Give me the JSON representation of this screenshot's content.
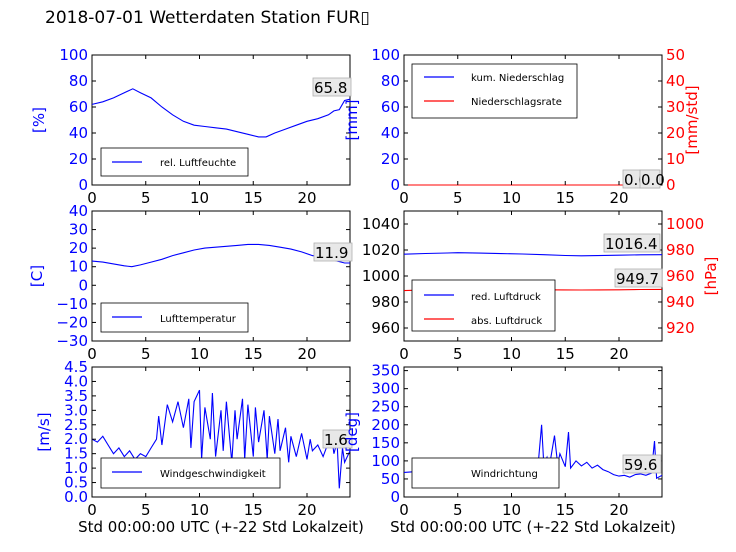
{
  "title": "2018-07-01 Wetterdaten Station FUR▯",
  "colors": {
    "blue": "#0000ff",
    "red": "#ff0000",
    "black": "#000000"
  },
  "chart_data": [
    {
      "type": "line",
      "panel": "humidity",
      "ylabel": "[%]",
      "ylim": [
        0,
        100
      ],
      "yticks": [
        "0",
        "20",
        "40",
        "60",
        "80",
        "100"
      ],
      "xlim": [
        0,
        24
      ],
      "xticks": [
        "0",
        "5",
        "10",
        "15",
        "20"
      ],
      "xlabel": "",
      "legend": {
        "placement": "lower-left",
        "entries": [
          "rel. Luftfeuchte"
        ]
      },
      "annotations": [
        "65.8"
      ],
      "series": [
        {
          "name": "rel. Luftfeuchte",
          "axis": "left",
          "color": "blue",
          "x": [
            0,
            1,
            2,
            3,
            3.8,
            4.5,
            5.5,
            6.5,
            7.5,
            8.5,
            9.5,
            10.5,
            11.5,
            12.5,
            13.5,
            14.5,
            15.5,
            16.2,
            17,
            18,
            19,
            20,
            21,
            22,
            22.5,
            23,
            23.5,
            24
          ],
          "y": [
            62,
            64,
            67,
            71,
            74,
            71,
            67,
            60,
            54,
            49,
            46,
            45,
            44,
            43,
            41,
            39,
            37,
            37,
            40,
            43,
            46,
            49,
            51,
            54,
            57,
            58,
            65,
            66
          ]
        }
      ]
    },
    {
      "type": "line",
      "panel": "precipitation",
      "ylabel": "[mm]",
      "ylim": [
        0,
        100
      ],
      "yticks": [
        "0",
        "20",
        "40",
        "60",
        "80",
        "100"
      ],
      "ylabel_right": "[mm/std]",
      "ylim_right": [
        0,
        50
      ],
      "yticks_right": [
        "0",
        "10",
        "20",
        "30",
        "40",
        "50"
      ],
      "xlim": [
        0,
        24
      ],
      "xticks": [
        "0",
        "5",
        "10",
        "15",
        "20"
      ],
      "xlabel": "",
      "legend": {
        "placement": "upper-left",
        "entries": [
          "kum. Niederschlag",
          "Niederschlagsrate"
        ]
      },
      "annotations": [
        "0.0",
        "0.0"
      ],
      "series": [
        {
          "name": "kum. Niederschlag",
          "axis": "left",
          "color": "blue",
          "x": [
            0,
            24
          ],
          "y": [
            0,
            0
          ]
        },
        {
          "name": "Niederschlagsrate",
          "axis": "right",
          "color": "red",
          "x": [
            0,
            24
          ],
          "y": [
            0,
            0
          ]
        }
      ]
    },
    {
      "type": "line",
      "panel": "temperature",
      "ylabel": "[C]",
      "ylim": [
        -30,
        40
      ],
      "yticks": [
        "−30",
        "−20",
        "−10",
        "0",
        "10",
        "20",
        "30",
        "40"
      ],
      "xlim": [
        0,
        24
      ],
      "xticks": [
        "0",
        "5",
        "10",
        "15",
        "20"
      ],
      "xlabel": "",
      "legend": {
        "placement": "lower-left",
        "entries": [
          "Lufttemperatur"
        ]
      },
      "annotations": [
        "11.9"
      ],
      "series": [
        {
          "name": "Lufttemperatur",
          "axis": "left",
          "color": "blue",
          "x": [
            0,
            1,
            2,
            3,
            3.7,
            4.5,
            5.5,
            6.5,
            7.5,
            8.5,
            9.5,
            10.5,
            11.5,
            12.5,
            13.5,
            14.5,
            15.5,
            16.5,
            17.5,
            18.5,
            19.5,
            20.5,
            21.5,
            22.5,
            23.5,
            24
          ],
          "y": [
            13,
            12.5,
            11.5,
            10.5,
            10,
            11,
            12.5,
            14,
            16,
            17.5,
            19,
            20,
            20.5,
            21,
            21.5,
            22,
            22,
            21.5,
            20.5,
            19.5,
            18,
            16,
            15,
            13.5,
            12,
            12
          ]
        }
      ]
    },
    {
      "type": "line",
      "panel": "pressure",
      "ylabel": "",
      "ylim": [
        950,
        1050
      ],
      "yticks": [
        "960",
        "980",
        "1000",
        "1020",
        "1040"
      ],
      "ylabel_right": "[hPa]",
      "ylim_right": [
        910,
        1010
      ],
      "yticks_right": [
        "920",
        "940",
        "960",
        "980",
        "1000"
      ],
      "xlim": [
        0,
        24
      ],
      "xticks": [
        "0",
        "5",
        "10",
        "15",
        "20"
      ],
      "xlabel": "",
      "legend": {
        "placement": "lower-left",
        "entries": [
          "red. Luftdruck",
          "abs. Luftdruck"
        ]
      },
      "annotations": [
        "1016.4",
        "949.7"
      ],
      "series": [
        {
          "name": "red. Luftdruck",
          "axis": "left",
          "color": "blue",
          "x": [
            0,
            2,
            4,
            5,
            7,
            9,
            11,
            13,
            15,
            16.5,
            18,
            20,
            22,
            24
          ],
          "y": [
            1016.8,
            1017.3,
            1017.7,
            1017.9,
            1017.6,
            1017.2,
            1016.9,
            1016.4,
            1015.8,
            1015.5,
            1015.7,
            1016.0,
            1016.3,
            1016.4
          ]
        },
        {
          "name": "abs. Luftdruck",
          "axis": "right",
          "color": "red",
          "x": [
            0,
            2,
            4,
            5,
            7,
            9,
            11,
            13,
            15,
            16.5,
            18,
            20,
            22,
            24
          ],
          "y": [
            948.8,
            949.3,
            950.0,
            950.1,
            950.0,
            949.8,
            949.6,
            949.4,
            949.3,
            949.2,
            949.3,
            949.4,
            949.6,
            949.7
          ]
        }
      ]
    },
    {
      "type": "line",
      "panel": "windspeed",
      "ylabel": "[m/s]",
      "ylim": [
        0,
        4.5
      ],
      "yticks": [
        "0.0",
        "0.5",
        "1.0",
        "1.5",
        "2.0",
        "2.5",
        "3.0",
        "3.5",
        "4.0",
        "4.5"
      ],
      "xlim": [
        0,
        24
      ],
      "xticks": [
        "0",
        "5",
        "10",
        "15",
        "20"
      ],
      "xlabel": "Std 00:00:00 UTC (+-22 Std Lokalzeit)",
      "legend": {
        "placement": "lower-left",
        "entries": [
          "Windgeschwindigkeit"
        ]
      },
      "annotations": [
        "1.6"
      ],
      "series": [
        {
          "name": "Windgeschwindigkeit",
          "axis": "left",
          "color": "blue",
          "x": [
            0,
            0.5,
            1,
            1.5,
            2,
            2.5,
            3,
            3.5,
            4,
            4.5,
            5,
            5.5,
            6,
            6.2,
            6.5,
            7,
            7.5,
            8,
            8.5,
            9,
            9.2,
            9.5,
            10,
            10.2,
            10.5,
            11,
            11.2,
            11.5,
            12,
            12.2,
            12.5,
            13,
            13.3,
            13.5,
            14,
            14.2,
            14.5,
            15,
            15.2,
            15.5,
            16,
            16.3,
            16.5,
            17,
            17.3,
            17.5,
            18,
            18.3,
            18.5,
            19,
            19.5,
            20,
            20.3,
            20.5,
            21,
            21.5,
            22,
            22.3,
            22.5,
            22.8,
            23,
            23.3,
            23.5,
            24
          ],
          "y": [
            2.0,
            1.9,
            2.1,
            1.8,
            1.5,
            1.7,
            1.4,
            1.6,
            1.3,
            1.5,
            1.4,
            1.7,
            2.0,
            2.8,
            1.8,
            3.2,
            2.6,
            3.3,
            2.4,
            3.4,
            1.7,
            3.3,
            3.7,
            1.3,
            3.1,
            2.0,
            3.6,
            1.4,
            3.0,
            1.6,
            3.3,
            1.2,
            3.0,
            2.0,
            3.4,
            1.3,
            3.2,
            1.4,
            3.1,
            1.9,
            3.0,
            1.3,
            2.8,
            1.5,
            2.7,
            1.6,
            2.4,
            1.2,
            2.1,
            1.4,
            2.2,
            1.3,
            2.0,
            1.6,
            1.8,
            1.4,
            1.9,
            2.1,
            1.5,
            1.9,
            0.3,
            1.7,
            1.2,
            1.6
          ]
        }
      ]
    },
    {
      "type": "line",
      "panel": "winddirection",
      "ylabel": "[deg]",
      "ylim": [
        0,
        360
      ],
      "yticks": [
        "0",
        "50",
        "100",
        "150",
        "200",
        "250",
        "300",
        "350"
      ],
      "xlim": [
        0,
        24
      ],
      "xticks": [
        "0",
        "5",
        "10",
        "15",
        "20"
      ],
      "xlabel": "Std 00:00:00 UTC (+-22 Std Lokalzeit)",
      "legend": {
        "placement": "lower-left",
        "entries": [
          "Windrichtung"
        ]
      },
      "annotations": [
        "59.6"
      ],
      "series": [
        {
          "name": "Windrichtung",
          "axis": "left",
          "color": "blue",
          "x": [
            0,
            1,
            2,
            3,
            4,
            5,
            5.5,
            6,
            6.5,
            7,
            7.5,
            8,
            8.5,
            9,
            9.5,
            10,
            10.5,
            11,
            11.5,
            12,
            12.5,
            12.8,
            13,
            13.3,
            13.5,
            14,
            14.3,
            14.5,
            15,
            15.3,
            15.5,
            16,
            16.5,
            17,
            17.5,
            18,
            18.5,
            19,
            19.5,
            20,
            20.5,
            21,
            21.5,
            22,
            22.5,
            23,
            23.3,
            23.5,
            24
          ],
          "y": [
            68,
            70,
            72,
            70,
            74,
            76,
            80,
            72,
            86,
            74,
            90,
            76,
            88,
            70,
            92,
            80,
            96,
            76,
            94,
            82,
            98,
            200,
            90,
            110,
            80,
            170,
            90,
            120,
            84,
            180,
            80,
            100,
            86,
            96,
            80,
            88,
            76,
            70,
            62,
            58,
            60,
            55,
            62,
            64,
            60,
            66,
            155,
            52,
            60
          ]
        }
      ]
    }
  ]
}
